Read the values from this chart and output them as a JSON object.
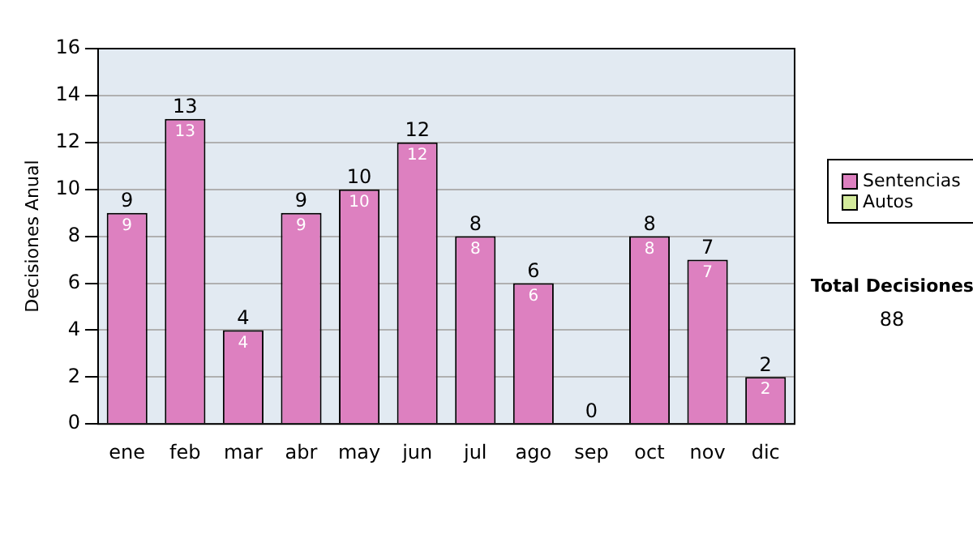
{
  "chart_data": {
    "type": "bar",
    "ylabel": "Decisiones Anual",
    "categories": [
      "ene",
      "feb",
      "mar",
      "abr",
      "may",
      "jun",
      "jul",
      "ago",
      "sep",
      "oct",
      "nov",
      "dic"
    ],
    "stacked": true,
    "series": [
      {
        "name": "Sentencias",
        "color": "#dd80c0",
        "values": [
          9,
          13,
          4,
          9,
          10,
          12,
          8,
          6,
          0,
          8,
          7,
          2
        ],
        "value_labels": [
          "9",
          "13",
          "4",
          "9",
          "10",
          "12",
          "8",
          "6",
          null,
          "8",
          "7",
          "2"
        ]
      },
      {
        "name": "Autos",
        "color": "#d4eb9c",
        "values": [
          0,
          0,
          0,
          0,
          0,
          0,
          0,
          0,
          0,
          0,
          0,
          0
        ]
      }
    ],
    "totals": [
      "9",
      "13",
      "4",
      "9",
      "10",
      "12",
      "8",
      "6",
      "0",
      "8",
      "7",
      "2"
    ],
    "ylim": [
      0,
      16
    ],
    "yticks": [
      0,
      2,
      4,
      6,
      8,
      10,
      12,
      14,
      16
    ],
    "grid": "y",
    "legend": "right",
    "annotations": [
      "Total Decisiones",
      "88"
    ]
  }
}
